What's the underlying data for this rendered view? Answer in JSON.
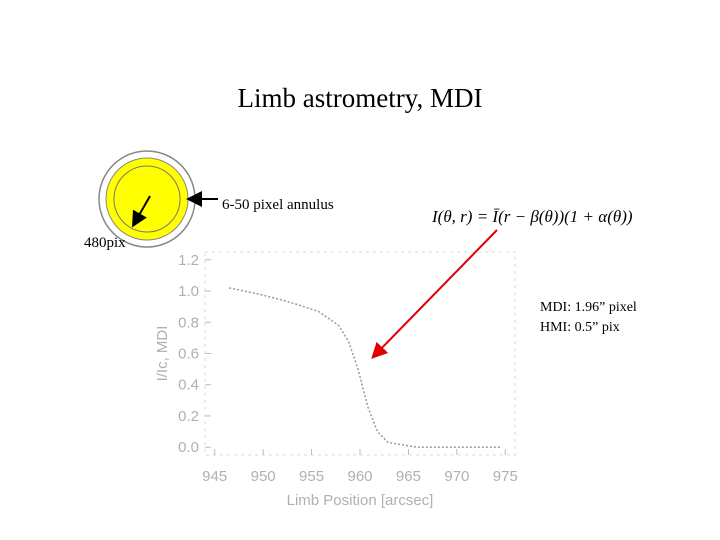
{
  "slide": {
    "title": "Limb astrometry, MDI",
    "annulus_label": "6-50 pixel annulus",
    "diameter_label": "480pix",
    "formula": "I(θ, r) = Ī(r − β(θ))(1 + α(θ))",
    "notes": [
      "MDI: 1.96” pixel",
      "HMI: 0.5” pix"
    ]
  },
  "chart_data": {
    "type": "line",
    "xlabel": "Limb Position [arcsec]",
    "ylabel": "I/Ic, MDI",
    "x": [
      946.5,
      949.6,
      952.7,
      955.7,
      957.8,
      958.8,
      959.8,
      960.3,
      960.8,
      961.8,
      962.9,
      965.9,
      970,
      974.6
    ],
    "series": [
      {
        "color": "#999999",
        "values": [
          1.02,
          0.98,
          0.93,
          0.87,
          0.78,
          0.68,
          0.5,
          0.38,
          0.26,
          0.1,
          0.03,
          0.0,
          0.0,
          0.0
        ]
      }
    ],
    "xlim": [
      944,
      976
    ],
    "ylim": [
      -0.05,
      1.25
    ],
    "xticks": [
      945,
      950,
      955,
      960,
      965,
      970,
      975
    ],
    "yticks": [
      1.2,
      {
        "value": 1,
        "label": "1.0"
      },
      0.8,
      0.6,
      0.4,
      0.2,
      {
        "value": 0,
        "label": "0.0"
      }
    ]
  }
}
